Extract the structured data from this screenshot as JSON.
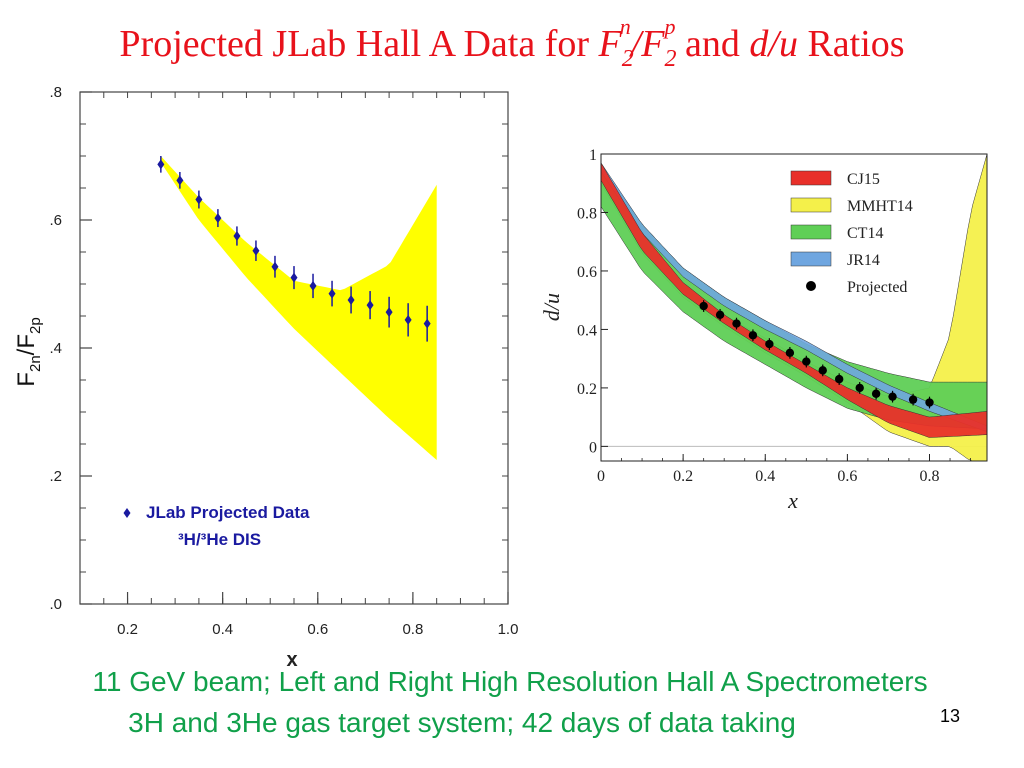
{
  "slide": {
    "title_prefix": "Projected JLab Hall A Data for ",
    "title_F1": "F",
    "title_sub1": "2",
    "title_sup1": "n",
    "title_F2": "/F",
    "title_sub2": "2",
    "title_sup2": "p",
    "title_and": " and ",
    "title_du": "d/u",
    "title_suffix": " Ratios",
    "footer_line1": "11 GeV beam; Left and Right High Resolution Hall A Spectrometers",
    "footer_line2": "3H and 3He gas target system; 42 days of data taking",
    "page_number": "13"
  },
  "chart_data": [
    {
      "type": "scatter",
      "title": "",
      "xlabel": "x",
      "ylabel": "F2n/F2p",
      "ylabel_main": "F",
      "ylabel_sub1": "2n",
      "ylabel_mid": "/F",
      "ylabel_sub2": "2p",
      "xlim": [
        0.1,
        1.0
      ],
      "ylim": [
        0.0,
        0.8
      ],
      "xticks": [
        0.2,
        0.4,
        0.6,
        0.8,
        1.0
      ],
      "xtick_labels": [
        "0.2",
        "0.4",
        "0.6",
        "0.8",
        "1.0"
      ],
      "yticks": [
        0.0,
        0.2,
        0.4,
        0.6,
        0.8
      ],
      "ytick_labels": [
        ".0",
        ".2",
        ".4",
        ".6",
        ".8"
      ],
      "legend": {
        "label_line1": "JLab Projected Data",
        "label_line2": "³H/³He DIS",
        "position": "bottom-left"
      },
      "colors": {
        "band": "#ffff00",
        "points": "#1a1aa0"
      },
      "band": {
        "x": [
          0.27,
          0.35,
          0.45,
          0.55,
          0.65,
          0.75,
          0.85
        ],
        "upper": [
          0.7,
          0.635,
          0.565,
          0.505,
          0.49,
          0.53,
          0.655
        ],
        "lower": [
          0.69,
          0.6,
          0.51,
          0.43,
          0.36,
          0.29,
          0.225
        ]
      },
      "series": [
        {
          "name": "JLab Projected Data",
          "x": [
            0.27,
            0.31,
            0.35,
            0.39,
            0.43,
            0.47,
            0.51,
            0.55,
            0.59,
            0.63,
            0.67,
            0.71,
            0.75,
            0.79,
            0.83
          ],
          "y": [
            0.687,
            0.662,
            0.632,
            0.603,
            0.575,
            0.552,
            0.527,
            0.51,
            0.497,
            0.485,
            0.475,
            0.467,
            0.456,
            0.444,
            0.438
          ],
          "err": [
            0.013,
            0.013,
            0.014,
            0.014,
            0.015,
            0.016,
            0.017,
            0.018,
            0.019,
            0.02,
            0.021,
            0.022,
            0.024,
            0.026,
            0.028
          ]
        }
      ]
    },
    {
      "type": "line",
      "title": "",
      "xlabel": "x",
      "ylabel": "d/u",
      "xlim": [
        0.0,
        0.94
      ],
      "ylim": [
        -0.05,
        1.0
      ],
      "xticks": [
        0.0,
        0.2,
        0.4,
        0.6,
        0.8
      ],
      "xtick_labels": [
        "0",
        "0.2",
        "0.4",
        "0.6",
        "0.8"
      ],
      "yticks": [
        0.0,
        0.2,
        0.4,
        0.6,
        0.8,
        1.0
      ],
      "ytick_labels": [
        "0",
        "0.2",
        "0.4",
        "0.6",
        "0.8",
        "1"
      ],
      "legend_position": "top-right",
      "series": [
        {
          "name": "CJ15",
          "color": "#e8302a",
          "x": [
            0.0,
            0.1,
            0.2,
            0.3,
            0.4,
            0.5,
            0.6,
            0.7,
            0.8,
            0.94
          ],
          "upper": [
            0.97,
            0.73,
            0.56,
            0.45,
            0.36,
            0.28,
            0.2,
            0.14,
            0.1,
            0.12
          ],
          "lower": [
            0.91,
            0.67,
            0.52,
            0.42,
            0.33,
            0.25,
            0.16,
            0.08,
            0.03,
            0.04
          ]
        },
        {
          "name": "MMHT14",
          "color": "#f4f04a",
          "x": [
            0.0,
            0.1,
            0.2,
            0.3,
            0.4,
            0.5,
            0.6,
            0.7,
            0.8,
            0.85,
            0.9,
            0.94
          ],
          "upper": [
            0.97,
            0.72,
            0.56,
            0.45,
            0.37,
            0.29,
            0.22,
            0.17,
            0.2,
            0.38,
            0.8,
            1.0
          ],
          "lower": [
            0.9,
            0.66,
            0.51,
            0.41,
            0.32,
            0.24,
            0.15,
            0.05,
            0.0,
            0.0,
            -0.05,
            -0.05
          ]
        },
        {
          "name": "CT14",
          "color": "#5fcf56",
          "x": [
            0.0,
            0.1,
            0.2,
            0.3,
            0.4,
            0.5,
            0.6,
            0.7,
            0.8,
            0.94
          ],
          "upper": [
            0.96,
            0.76,
            0.61,
            0.51,
            0.43,
            0.35,
            0.29,
            0.25,
            0.22,
            0.22
          ],
          "lower": [
            0.82,
            0.6,
            0.46,
            0.36,
            0.28,
            0.2,
            0.13,
            0.09,
            0.07,
            0.06
          ]
        },
        {
          "name": "JR14",
          "color": "#6fa6e0",
          "x": [
            0.0,
            0.1,
            0.2,
            0.3,
            0.4,
            0.5,
            0.6,
            0.7,
            0.8,
            0.94
          ],
          "upper": [
            0.97,
            0.76,
            0.61,
            0.51,
            0.43,
            0.36,
            0.28,
            0.21,
            0.15,
            0.07
          ],
          "lower": [
            0.94,
            0.73,
            0.58,
            0.48,
            0.4,
            0.33,
            0.25,
            0.18,
            0.12,
            0.05
          ]
        },
        {
          "name": "Projected",
          "color": "#000000",
          "x": [
            0.25,
            0.29,
            0.33,
            0.37,
            0.41,
            0.46,
            0.5,
            0.54,
            0.58,
            0.63,
            0.67,
            0.71,
            0.76,
            0.8
          ],
          "y": [
            0.48,
            0.45,
            0.42,
            0.38,
            0.35,
            0.32,
            0.29,
            0.26,
            0.23,
            0.2,
            0.18,
            0.17,
            0.16,
            0.15
          ],
          "err": [
            0.02,
            0.02,
            0.02,
            0.02,
            0.02,
            0.02,
            0.02,
            0.02,
            0.02,
            0.02,
            0.02,
            0.02,
            0.02,
            0.02
          ]
        }
      ]
    }
  ]
}
